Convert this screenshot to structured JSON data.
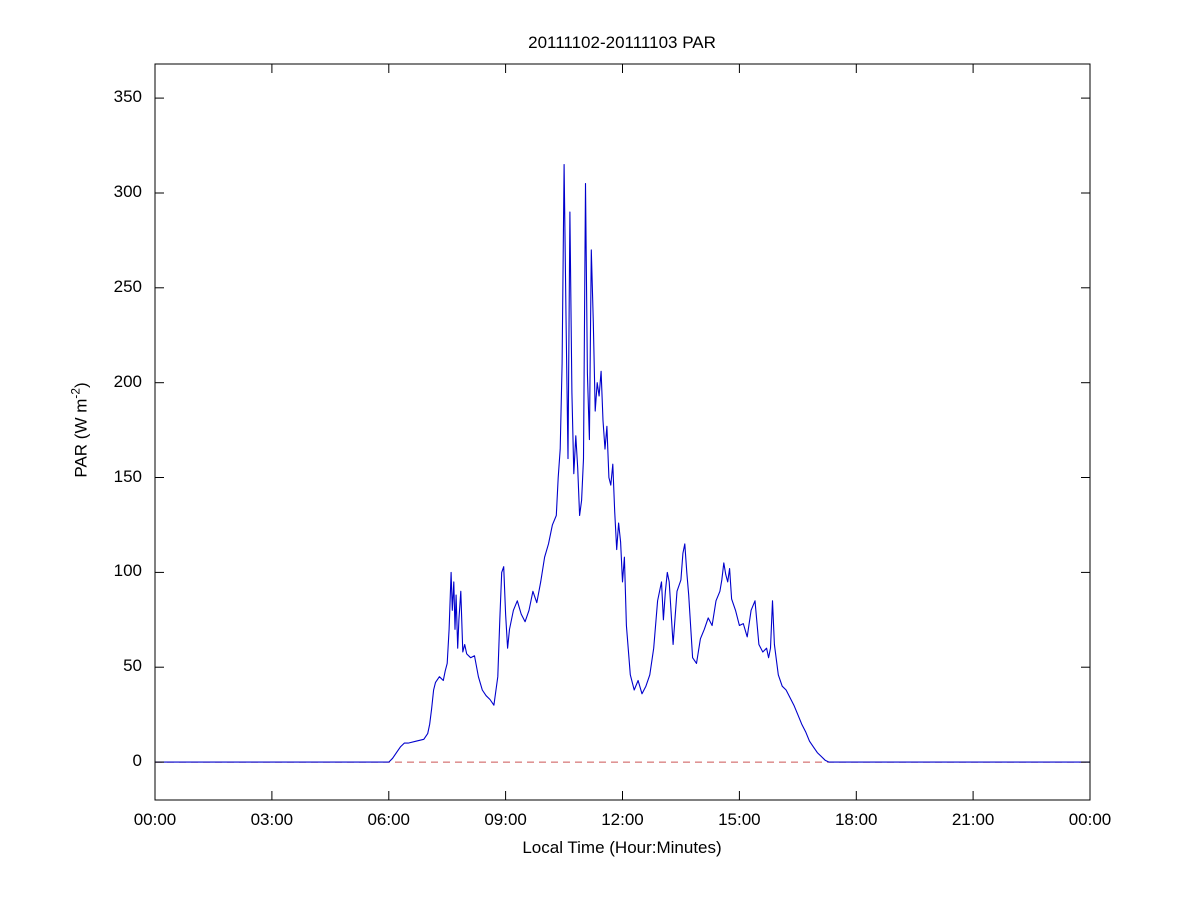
{
  "chart": {
    "title": "20111102-20111103 PAR",
    "xlabel": "Local Time (Hour:Minutes)",
    "ylabel_prefix": "PAR (W m",
    "ylabel_sup": "-2",
    "ylabel_suffix": ")"
  },
  "chart_data": {
    "type": "line",
    "title": "20111102-20111103 PAR",
    "xlabel": "Local Time (Hour:Minutes)",
    "ylabel": "PAR (W m^-2)",
    "grid": false,
    "legend": "none",
    "xlim_hours": [
      0,
      24
    ],
    "ylim": [
      -20,
      368
    ],
    "xticks": [
      {
        "hour": 0,
        "label": "00:00"
      },
      {
        "hour": 3,
        "label": "03:00"
      },
      {
        "hour": 6,
        "label": "06:00"
      },
      {
        "hour": 9,
        "label": "09:00"
      },
      {
        "hour": 12,
        "label": "12:00"
      },
      {
        "hour": 15,
        "label": "15:00"
      },
      {
        "hour": 18,
        "label": "18:00"
      },
      {
        "hour": 21,
        "label": "21:00"
      },
      {
        "hour": 24,
        "label": "00:00"
      }
    ],
    "yticks": [
      0,
      50,
      100,
      150,
      200,
      250,
      300,
      350
    ],
    "series": [
      {
        "name": "PAR",
        "color": "#0000cc",
        "style": "solid",
        "x_hours": [
          0,
          6.0,
          6.1,
          6.2,
          6.3,
          6.4,
          6.5,
          6.7,
          6.9,
          7.0,
          7.05,
          7.1,
          7.15,
          7.2,
          7.3,
          7.4,
          7.45,
          7.5,
          7.55,
          7.6,
          7.63,
          7.67,
          7.7,
          7.73,
          7.77,
          7.8,
          7.85,
          7.9,
          7.95,
          8.0,
          8.1,
          8.2,
          8.3,
          8.4,
          8.5,
          8.6,
          8.7,
          8.8,
          8.85,
          8.9,
          8.95,
          9.0,
          9.05,
          9.1,
          9.2,
          9.3,
          9.4,
          9.5,
          9.6,
          9.7,
          9.8,
          9.9,
          10.0,
          10.1,
          10.2,
          10.3,
          10.35,
          10.4,
          10.45,
          10.5,
          10.55,
          10.6,
          10.65,
          10.7,
          10.75,
          10.8,
          10.85,
          10.9,
          10.95,
          11.0,
          11.05,
          11.1,
          11.15,
          11.2,
          11.25,
          11.3,
          11.35,
          11.4,
          11.45,
          11.5,
          11.55,
          11.6,
          11.65,
          11.7,
          11.75,
          11.8,
          11.85,
          11.9,
          11.95,
          12.0,
          12.05,
          12.1,
          12.2,
          12.3,
          12.4,
          12.5,
          12.6,
          12.7,
          12.8,
          12.9,
          13.0,
          13.05,
          13.1,
          13.15,
          13.2,
          13.3,
          13.4,
          13.5,
          13.55,
          13.6,
          13.65,
          13.7,
          13.8,
          13.9,
          14.0,
          14.1,
          14.2,
          14.3,
          14.4,
          14.5,
          14.55,
          14.6,
          14.65,
          14.7,
          14.75,
          14.8,
          14.9,
          15.0,
          15.1,
          15.2,
          15.3,
          15.4,
          15.5,
          15.6,
          15.7,
          15.75,
          15.8,
          15.85,
          15.9,
          16.0,
          16.1,
          16.2,
          16.3,
          16.4,
          16.5,
          16.6,
          16.7,
          16.8,
          16.9,
          17.0,
          17.1,
          17.2,
          17.3,
          18.0,
          24.0
        ],
        "values": [
          0,
          0,
          2,
          5,
          8,
          10,
          10,
          11,
          12,
          15,
          20,
          28,
          38,
          42,
          45,
          43,
          48,
          52,
          70,
          100,
          80,
          95,
          70,
          88,
          60,
          75,
          90,
          58,
          62,
          57,
          55,
          56,
          45,
          38,
          35,
          33,
          30,
          45,
          75,
          100,
          103,
          78,
          60,
          70,
          80,
          85,
          78,
          74,
          80,
          90,
          84,
          95,
          108,
          115,
          125,
          130,
          150,
          165,
          210,
          315,
          235,
          160,
          290,
          195,
          152,
          172,
          155,
          130,
          138,
          160,
          305,
          205,
          170,
          270,
          232,
          185,
          200,
          193,
          206,
          180,
          165,
          177,
          150,
          146,
          157,
          132,
          112,
          126,
          116,
          95,
          108,
          72,
          46,
          38,
          43,
          36,
          40,
          46,
          60,
          85,
          95,
          75,
          90,
          100,
          95,
          62,
          90,
          96,
          110,
          115,
          100,
          88,
          55,
          52,
          65,
          70,
          76,
          72,
          85,
          90,
          96,
          105,
          99,
          95,
          102,
          86,
          80,
          72,
          73,
          66,
          80,
          85,
          62,
          58,
          60,
          55,
          60,
          85,
          62,
          46,
          40,
          38,
          34,
          30,
          25,
          20,
          16,
          11,
          8,
          5,
          3,
          1,
          0,
          0,
          0
        ]
      },
      {
        "name": "zero-reference",
        "color": "#cc5555",
        "style": "dashed",
        "y": 0
      }
    ]
  }
}
